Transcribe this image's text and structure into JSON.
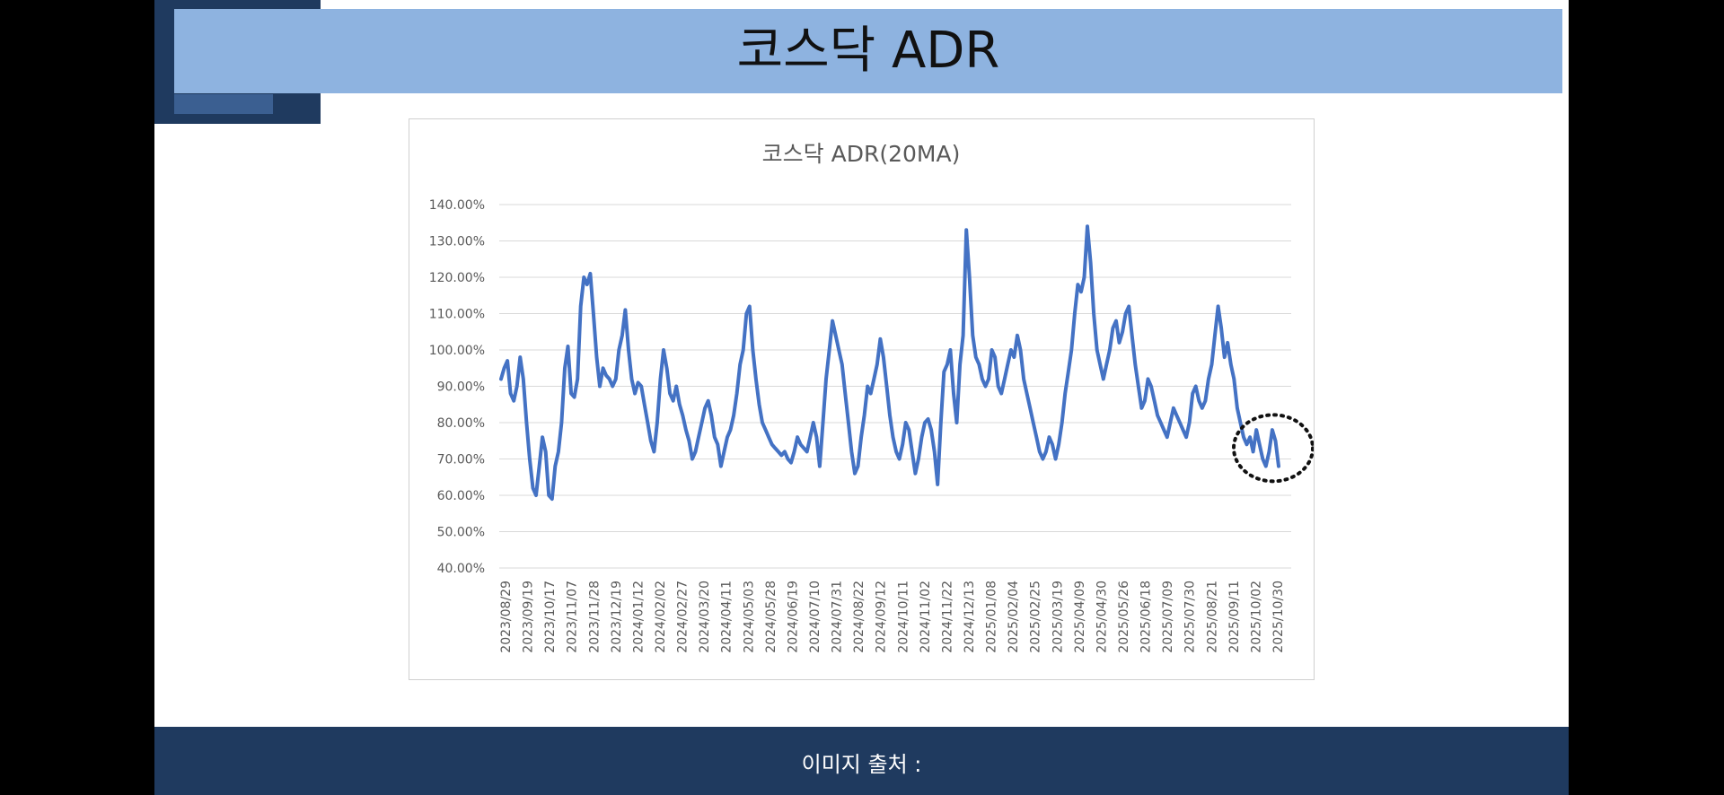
{
  "slide": {
    "title": "코스닥 ADR",
    "footer": "이미지 출처 :"
  },
  "colors": {
    "title_bar": "#8eb3e0",
    "navy": "#1f3a5f",
    "line": "#4472c4"
  },
  "chart_data": {
    "type": "line",
    "title": "코스닥 ADR(20MA)",
    "xlabel": "",
    "ylabel": "",
    "ylim": [
      40,
      140
    ],
    "yticks": [
      "140.00%",
      "130.00%",
      "120.00%",
      "110.00%",
      "100.00%",
      "90.00%",
      "80.00%",
      "70.00%",
      "60.00%",
      "50.00%",
      "40.00%"
    ],
    "x_tick_labels": [
      "2023/08/29",
      "2023/09/19",
      "2023/10/17",
      "2023/11/07",
      "2023/11/28",
      "2023/12/19",
      "2024/01/12",
      "2024/02/02",
      "2024/02/27",
      "2024/03/20",
      "2024/04/11",
      "2024/05/03",
      "2024/05/28",
      "2024/06/19",
      "2024/07/10",
      "2024/07/31",
      "2024/08/22",
      "2024/09/12",
      "2024/10/11",
      "2024/11/02",
      "2024/11/22",
      "2024/12/13",
      "2025/01/08",
      "2025/02/04",
      "2025/02/25",
      "2025/03/19",
      "2025/04/09",
      "2025/04/30",
      "2025/05/26",
      "2025/06/18",
      "2025/07/09",
      "2025/07/30",
      "2025/08/21",
      "2025/09/11",
      "2025/10/02",
      "2025/10/30"
    ],
    "grid": true,
    "legend": "none",
    "annotation": "dotted circle around latest values",
    "series": [
      {
        "values": [
          92,
          95,
          97,
          88,
          86,
          90,
          98,
          92,
          80,
          70,
          62,
          60,
          68,
          76,
          72,
          60,
          59,
          68,
          72,
          80,
          95,
          101,
          88,
          87,
          92,
          112,
          120,
          118,
          121,
          110,
          98,
          90,
          95,
          93,
          92,
          90,
          92,
          100,
          104,
          111,
          100,
          92,
          88,
          91,
          90,
          85,
          80,
          75,
          72,
          80,
          92,
          100,
          95,
          88,
          86,
          90,
          85,
          82,
          78,
          75,
          70,
          72,
          76,
          80,
          84,
          86,
          82,
          76,
          74,
          68,
          72,
          76,
          78,
          82,
          88,
          96,
          100,
          110,
          112,
          100,
          92,
          85,
          80,
          78,
          76,
          74,
          73,
          72,
          71,
          72,
          70,
          69,
          72,
          76,
          74,
          73,
          72,
          76,
          80,
          76,
          68,
          80,
          92,
          100,
          108,
          104,
          100,
          96,
          88,
          80,
          72,
          66,
          68,
          76,
          82,
          90,
          88,
          92,
          96,
          103,
          98,
          90,
          82,
          76,
          72,
          70,
          74,
          80,
          78,
          72,
          66,
          70,
          76,
          80,
          81,
          78,
          72,
          63,
          80,
          94,
          96,
          100,
          88,
          80,
          96,
          104,
          133,
          120,
          104,
          98,
          96,
          92,
          90,
          92,
          100,
          98,
          90,
          88,
          92,
          96,
          100,
          98,
          104,
          100,
          92,
          88,
          84,
          80,
          76,
          72,
          70,
          72,
          76,
          74,
          70,
          74,
          80,
          88,
          94,
          100,
          110,
          118,
          116,
          120,
          134,
          124,
          110,
          100,
          96,
          92,
          96,
          100,
          106,
          108,
          102,
          105,
          110,
          112,
          104,
          96,
          90,
          84,
          86,
          92,
          90,
          86,
          82,
          80,
          78,
          76,
          80,
          84,
          82,
          80,
          78,
          76,
          80,
          88,
          90,
          86,
          84,
          86,
          92,
          96,
          104,
          112,
          106,
          98,
          102,
          96,
          92,
          84,
          80,
          76,
          74,
          76,
          72,
          78,
          74,
          70,
          68,
          72,
          78,
          75,
          68
        ]
      }
    ]
  }
}
